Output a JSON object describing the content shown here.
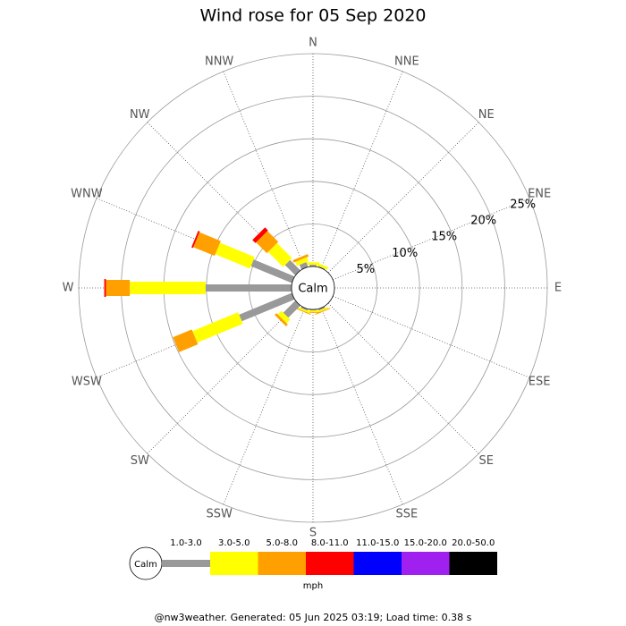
{
  "chart_data": {
    "type": "wind_rose",
    "title": "Wind rose for 05 Sep 2020",
    "center_label": "Calm",
    "categories": [
      "N",
      "NNE",
      "NE",
      "ENE",
      "E",
      "ESE",
      "SE",
      "SSE",
      "S",
      "SSW",
      "SW",
      "WSW",
      "W",
      "WNW",
      "NW",
      "NNW"
    ],
    "rlim": [
      0,
      25
    ],
    "rticks": [
      {
        "value": 5,
        "label": "5%"
      },
      {
        "value": 10,
        "label": "10%"
      },
      {
        "value": 15,
        "label": "15%"
      },
      {
        "value": 20,
        "label": "20%"
      },
      {
        "value": 25,
        "label": "25%"
      }
    ],
    "series": [
      {
        "name": "1.0-3.0",
        "color": "#999999",
        "values": [
          0.2,
          0.1,
          0,
          0,
          0,
          0,
          0,
          0.2,
          0.1,
          0.2,
          2.0,
          6.7,
          10.1,
          5.2,
          1.7,
          0.6
        ]
      },
      {
        "name": "3.0-5.0",
        "color": "#ffff00",
        "values": [
          0.3,
          0.3,
          0,
          0,
          0,
          0,
          0,
          0.2,
          0.2,
          0.2,
          0.6,
          5.8,
          8.9,
          4.4,
          2.5,
          0.5
        ]
      },
      {
        "name": "5.0-8.0",
        "color": "#ffa000",
        "values": [
          0,
          0,
          0,
          0,
          0,
          0,
          0,
          0.1,
          0.1,
          0.1,
          0.3,
          2.4,
          2.8,
          2.7,
          1.8,
          0.3
        ]
      },
      {
        "name": "8.0-11.0",
        "color": "#ff0000",
        "values": [
          0,
          0,
          0,
          0,
          0,
          0,
          0,
          0,
          0,
          0,
          0,
          0,
          0.2,
          0.2,
          0.5,
          0
        ]
      },
      {
        "name": "11.0-15.0",
        "color": "#0000ff",
        "values": [
          0,
          0,
          0,
          0,
          0,
          0,
          0,
          0,
          0,
          0,
          0,
          0,
          0,
          0,
          0,
          0
        ]
      },
      {
        "name": "15.0-20.0",
        "color": "#a020f0",
        "values": [
          0,
          0,
          0,
          0,
          0,
          0,
          0,
          0,
          0,
          0,
          0,
          0,
          0,
          0,
          0,
          0
        ]
      },
      {
        "name": "20.0-50.0",
        "color": "#000000",
        "values": [
          0,
          0,
          0,
          0,
          0,
          0,
          0,
          0,
          0,
          0,
          0,
          0,
          0,
          0,
          0,
          0
        ]
      }
    ],
    "unit_label": "mph",
    "footer": "@nw3weather. Generated: 05 Jun 2025 03:19; Load time: 0.38 s"
  }
}
